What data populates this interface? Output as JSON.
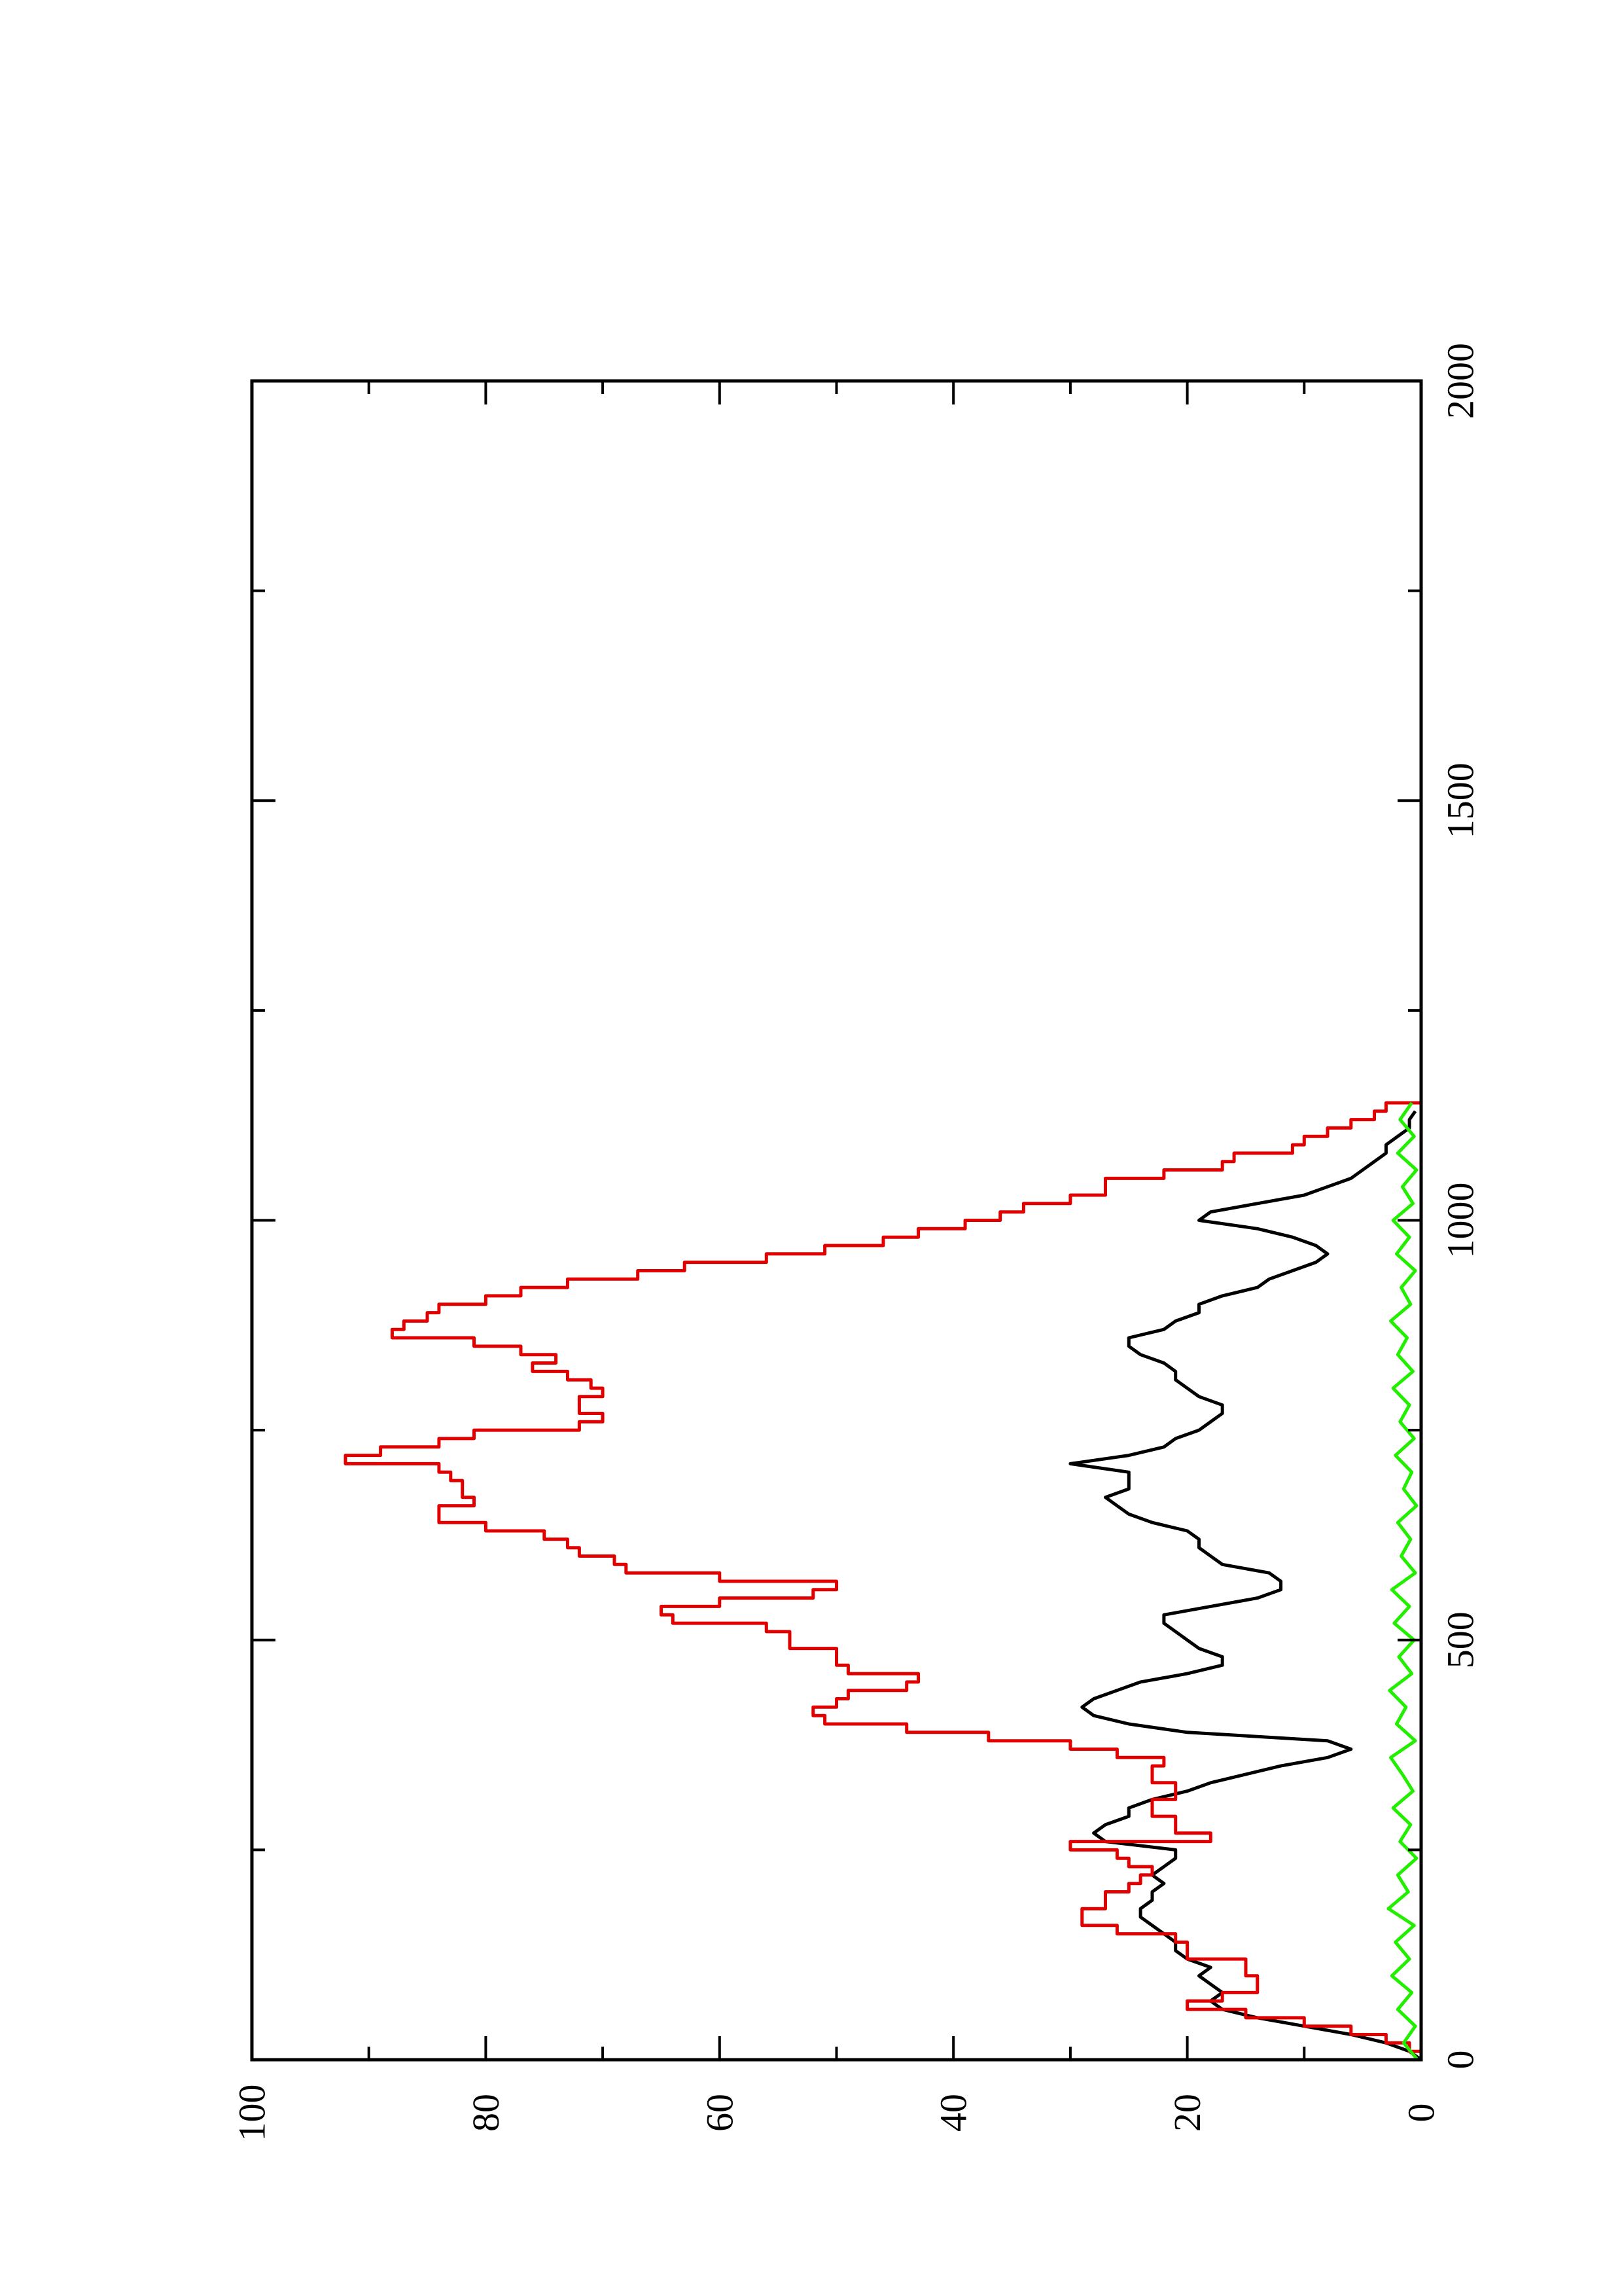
{
  "chart_data": {
    "type": "line",
    "orientation": "rotated 90 degrees counter-clockwise",
    "title": "",
    "xlabel": "",
    "ylabel": "",
    "xlim": [
      0,
      2000
    ],
    "ylim": [
      0,
      100
    ],
    "x_ticks": [
      "0",
      "500",
      "1000",
      "1500",
      "2000"
    ],
    "y_ticks": [
      "0",
      "20",
      "40",
      "60",
      "80",
      "100"
    ],
    "grid": false,
    "legend": "none",
    "series": [
      {
        "color": "#000000",
        "style": "solid",
        "points": [
          [
            0,
            0
          ],
          [
            10,
            1
          ],
          [
            20,
            3
          ],
          [
            30,
            6
          ],
          [
            40,
            10
          ],
          [
            50,
            14
          ],
          [
            60,
            17
          ],
          [
            70,
            18
          ],
          [
            80,
            17
          ],
          [
            90,
            18
          ],
          [
            100,
            19
          ],
          [
            110,
            18
          ],
          [
            120,
            20
          ],
          [
            130,
            21
          ],
          [
            140,
            21
          ],
          [
            150,
            22
          ],
          [
            160,
            23
          ],
          [
            170,
            24
          ],
          [
            180,
            24
          ],
          [
            190,
            23
          ],
          [
            200,
            23
          ],
          [
            210,
            22
          ],
          [
            220,
            23
          ],
          [
            230,
            22
          ],
          [
            240,
            21
          ],
          [
            250,
            21
          ],
          [
            260,
            27
          ],
          [
            270,
            28
          ],
          [
            280,
            27
          ],
          [
            290,
            25
          ],
          [
            300,
            25
          ],
          [
            310,
            23
          ],
          [
            320,
            20
          ],
          [
            330,
            18
          ],
          [
            340,
            15
          ],
          [
            350,
            12
          ],
          [
            360,
            8
          ],
          [
            370,
            6
          ],
          [
            380,
            8
          ],
          [
            390,
            20
          ],
          [
            400,
            25
          ],
          [
            410,
            28
          ],
          [
            420,
            29
          ],
          [
            430,
            28
          ],
          [
            440,
            26
          ],
          [
            450,
            24
          ],
          [
            460,
            20
          ],
          [
            470,
            17
          ],
          [
            480,
            17
          ],
          [
            490,
            19
          ],
          [
            500,
            20
          ],
          [
            510,
            21
          ],
          [
            520,
            22
          ],
          [
            530,
            22
          ],
          [
            540,
            18
          ],
          [
            550,
            14
          ],
          [
            560,
            12
          ],
          [
            570,
            12
          ],
          [
            580,
            13
          ],
          [
            590,
            17
          ],
          [
            600,
            18
          ],
          [
            610,
            19
          ],
          [
            620,
            19
          ],
          [
            630,
            20
          ],
          [
            640,
            23
          ],
          [
            650,
            25
          ],
          [
            660,
            26
          ],
          [
            670,
            27
          ],
          [
            680,
            25
          ],
          [
            690,
            25
          ],
          [
            700,
            25
          ],
          [
            710,
            30
          ],
          [
            720,
            25
          ],
          [
            730,
            22
          ],
          [
            740,
            21
          ],
          [
            750,
            19
          ],
          [
            760,
            18
          ],
          [
            770,
            17
          ],
          [
            780,
            17
          ],
          [
            790,
            19
          ],
          [
            800,
            20
          ],
          [
            810,
            21
          ],
          [
            820,
            21
          ],
          [
            830,
            22
          ],
          [
            840,
            24
          ],
          [
            850,
            25
          ],
          [
            860,
            25
          ],
          [
            870,
            22
          ],
          [
            880,
            21
          ],
          [
            890,
            19
          ],
          [
            900,
            19
          ],
          [
            910,
            17
          ],
          [
            920,
            14
          ],
          [
            930,
            13
          ],
          [
            940,
            11
          ],
          [
            950,
            9
          ],
          [
            960,
            8
          ],
          [
            970,
            9
          ],
          [
            980,
            11
          ],
          [
            990,
            14
          ],
          [
            1000,
            19
          ],
          [
            1010,
            18
          ],
          [
            1020,
            14
          ],
          [
            1030,
            10
          ],
          [
            1040,
            8
          ],
          [
            1050,
            6
          ],
          [
            1060,
            5
          ],
          [
            1070,
            4
          ],
          [
            1080,
            3
          ],
          [
            1090,
            3
          ],
          [
            1100,
            2
          ],
          [
            1110,
            1
          ],
          [
            1120,
            1
          ],
          [
            1130,
            0.5
          ]
        ]
      },
      {
        "color": "#e00000",
        "style": "step",
        "points": [
          [
            0,
            0
          ],
          [
            10,
            1
          ],
          [
            20,
            3
          ],
          [
            30,
            6
          ],
          [
            40,
            10
          ],
          [
            50,
            15
          ],
          [
            60,
            20
          ],
          [
            70,
            17
          ],
          [
            80,
            14
          ],
          [
            90,
            14
          ],
          [
            100,
            15
          ],
          [
            110,
            15
          ],
          [
            120,
            20
          ],
          [
            130,
            20
          ],
          [
            140,
            21
          ],
          [
            150,
            26
          ],
          [
            160,
            29
          ],
          [
            170,
            29
          ],
          [
            180,
            27
          ],
          [
            190,
            27
          ],
          [
            200,
            25
          ],
          [
            210,
            24
          ],
          [
            220,
            23
          ],
          [
            230,
            25
          ],
          [
            240,
            26
          ],
          [
            250,
            30
          ],
          [
            260,
            18
          ],
          [
            270,
            21
          ],
          [
            280,
            21
          ],
          [
            290,
            23
          ],
          [
            300,
            23
          ],
          [
            310,
            21
          ],
          [
            320,
            21
          ],
          [
            330,
            23
          ],
          [
            340,
            23
          ],
          [
            350,
            22
          ],
          [
            360,
            26
          ],
          [
            370,
            30
          ],
          [
            380,
            37
          ],
          [
            390,
            44
          ],
          [
            400,
            51
          ],
          [
            410,
            52
          ],
          [
            420,
            50
          ],
          [
            430,
            49
          ],
          [
            440,
            44
          ],
          [
            450,
            43
          ],
          [
            460,
            49
          ],
          [
            470,
            50
          ],
          [
            480,
            50
          ],
          [
            490,
            54
          ],
          [
            500,
            54
          ],
          [
            510,
            56
          ],
          [
            520,
            64
          ],
          [
            530,
            65
          ],
          [
            540,
            60
          ],
          [
            550,
            52
          ],
          [
            560,
            50
          ],
          [
            570,
            60
          ],
          [
            580,
            68
          ],
          [
            590,
            69
          ],
          [
            600,
            72
          ],
          [
            610,
            73
          ],
          [
            620,
            75
          ],
          [
            630,
            80
          ],
          [
            640,
            84
          ],
          [
            650,
            84
          ],
          [
            660,
            81
          ],
          [
            670,
            82
          ],
          [
            680,
            82
          ],
          [
            690,
            83
          ],
          [
            700,
            84
          ],
          [
            710,
            92
          ],
          [
            720,
            89
          ],
          [
            730,
            84
          ],
          [
            740,
            81
          ],
          [
            750,
            72
          ],
          [
            760,
            70
          ],
          [
            770,
            72
          ],
          [
            780,
            72
          ],
          [
            790,
            70
          ],
          [
            800,
            71
          ],
          [
            810,
            73
          ],
          [
            820,
            76
          ],
          [
            830,
            74
          ],
          [
            840,
            77
          ],
          [
            850,
            81
          ],
          [
            860,
            88
          ],
          [
            870,
            87
          ],
          [
            880,
            85
          ],
          [
            890,
            84
          ],
          [
            900,
            80
          ],
          [
            910,
            77
          ],
          [
            920,
            73
          ],
          [
            930,
            67
          ],
          [
            940,
            63
          ],
          [
            950,
            56
          ],
          [
            960,
            51
          ],
          [
            970,
            46
          ],
          [
            980,
            43
          ],
          [
            990,
            39
          ],
          [
            1000,
            36
          ],
          [
            1010,
            34
          ],
          [
            1020,
            30
          ],
          [
            1030,
            27
          ],
          [
            1040,
            27
          ],
          [
            1050,
            22
          ],
          [
            1060,
            17
          ],
          [
            1070,
            16
          ],
          [
            1080,
            11
          ],
          [
            1090,
            10
          ],
          [
            1100,
            8
          ],
          [
            1110,
            6
          ],
          [
            1120,
            4
          ],
          [
            1130,
            3
          ],
          [
            1140,
            0
          ]
        ]
      },
      {
        "color": "#22ee00",
        "style": "solid noisy",
        "points": [
          [
            0,
            0.3
          ],
          [
            20,
            1.5
          ],
          [
            40,
            0.5
          ],
          [
            60,
            2
          ],
          [
            80,
            0.8
          ],
          [
            100,
            2.5
          ],
          [
            120,
            1
          ],
          [
            140,
            2.2
          ],
          [
            160,
            0.6
          ],
          [
            180,
            2.8
          ],
          [
            200,
            1.1
          ],
          [
            220,
            2
          ],
          [
            240,
            0.4
          ],
          [
            260,
            1.8
          ],
          [
            280,
            0.9
          ],
          [
            300,
            2.4
          ],
          [
            320,
            0.7
          ],
          [
            340,
            1.6
          ],
          [
            360,
            2.6
          ],
          [
            380,
            0.5
          ],
          [
            400,
            2.1
          ],
          [
            420,
            1.3
          ],
          [
            440,
            2.7
          ],
          [
            460,
            0.8
          ],
          [
            480,
            1.9
          ],
          [
            500,
            0.6
          ],
          [
            520,
            2.3
          ],
          [
            540,
            1
          ],
          [
            560,
            2.5
          ],
          [
            580,
            0.5
          ],
          [
            600,
            1.7
          ],
          [
            620,
            0.9
          ],
          [
            640,
            2
          ],
          [
            660,
            0.4
          ],
          [
            680,
            1.5
          ],
          [
            700,
            0.8
          ],
          [
            720,
            2.2
          ],
          [
            740,
            0.6
          ],
          [
            760,
            1.8
          ],
          [
            780,
            1
          ],
          [
            800,
            2.4
          ],
          [
            820,
            0.7
          ],
          [
            840,
            2
          ],
          [
            860,
            1.2
          ],
          [
            880,
            2.6
          ],
          [
            900,
            0.9
          ],
          [
            920,
            1.7
          ],
          [
            940,
            0.5
          ],
          [
            960,
            2.1
          ],
          [
            980,
            1
          ],
          [
            1000,
            2.4
          ],
          [
            1020,
            0.7
          ],
          [
            1040,
            1.6
          ],
          [
            1060,
            0.4
          ],
          [
            1080,
            2
          ],
          [
            1100,
            0.6
          ],
          [
            1120,
            1.8
          ],
          [
            1140,
            0.8
          ]
        ]
      }
    ]
  }
}
